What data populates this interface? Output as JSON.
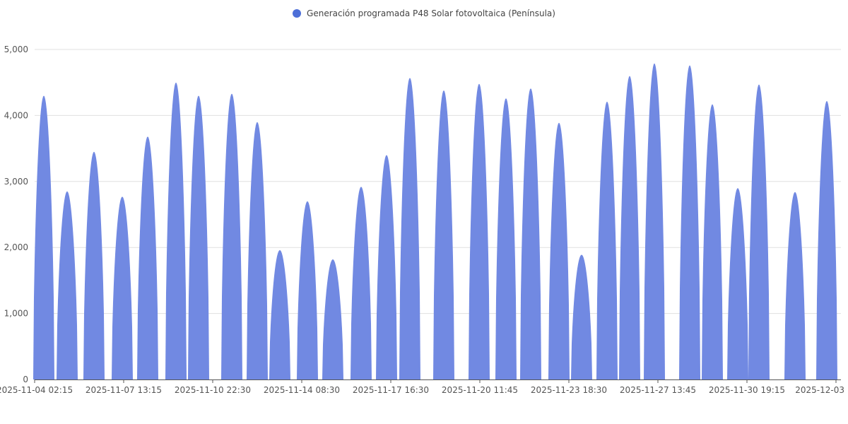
{
  "chart_data": {
    "type": "area",
    "title": "",
    "legend": {
      "position": "top",
      "entries": [
        "Generación programada P48 Solar fotovoltaica (Península)"
      ]
    },
    "series": [
      {
        "name": "Generación programada P48 Solar fotovoltaica (Península)",
        "color": "#7189e2",
        "daily_peaks": [
          {
            "date": "2025-11-04",
            "peak": 4300
          },
          {
            "date": "2025-11-05",
            "peak": 2850
          },
          {
            "date": "2025-11-06",
            "peak": 3450
          },
          {
            "date": "2025-11-07",
            "peak": 2770
          },
          {
            "date": "2025-11-08",
            "peak": 3680
          },
          {
            "date": "2025-11-09",
            "peak": 4500
          },
          {
            "date": "2025-11-10",
            "peak": 4300
          },
          {
            "date": "2025-11-11",
            "peak": 4330
          },
          {
            "date": "2025-11-12",
            "peak": 3900
          },
          {
            "date": "2025-11-13",
            "peak": 1960
          },
          {
            "date": "2025-11-14",
            "peak": 2700
          },
          {
            "date": "2025-11-15",
            "peak": 1820
          },
          {
            "date": "2025-11-16",
            "peak": 2920
          },
          {
            "date": "2025-11-17",
            "peak": 3400
          },
          {
            "date": "2025-11-18",
            "peak": 4570
          },
          {
            "date": "2025-11-19",
            "peak": 4380
          },
          {
            "date": "2025-11-20",
            "peak": 4480
          },
          {
            "date": "2025-11-21",
            "peak": 4260
          },
          {
            "date": "2025-11-22",
            "peak": 4410
          },
          {
            "date": "2025-11-23",
            "peak": 3890
          },
          {
            "date": "2025-11-24",
            "peak": 1890
          },
          {
            "date": "2025-11-25",
            "peak": 4210
          },
          {
            "date": "2025-11-26",
            "peak": 4600
          },
          {
            "date": "2025-11-27",
            "peak": 4790
          },
          {
            "date": "2025-11-28",
            "peak": 4760
          },
          {
            "date": "2025-11-29",
            "peak": 4170
          },
          {
            "date": "2025-11-30",
            "peak": 2900
          },
          {
            "date": "2025-12-01",
            "peak": 4470
          },
          {
            "date": "2025-12-02",
            "peak": 2840
          },
          {
            "date": "2025-12-03",
            "peak": 4220
          }
        ]
      }
    ],
    "legend_dot_color": "#4d6fd8",
    "x_tick_labels": [
      "2025-11-04 02:15",
      "2025-11-07 13:15",
      "2025-11-10 22:30",
      "2025-11-14 08:30",
      "2025-11-17 16:30",
      "2025-11-20 11:45",
      "2025-11-23 18:30",
      "2025-11-27 13:45",
      "2025-11-30 19:15",
      "2025-12-03"
    ],
    "y_ticks": [
      0,
      1000,
      2000,
      3000,
      4000,
      5000
    ],
    "y_tick_labels": [
      "0",
      "1,000",
      "2,000",
      "3,000",
      "4,000",
      "5,000"
    ],
    "ylim": [
      0,
      5000
    ],
    "grid": true
  }
}
